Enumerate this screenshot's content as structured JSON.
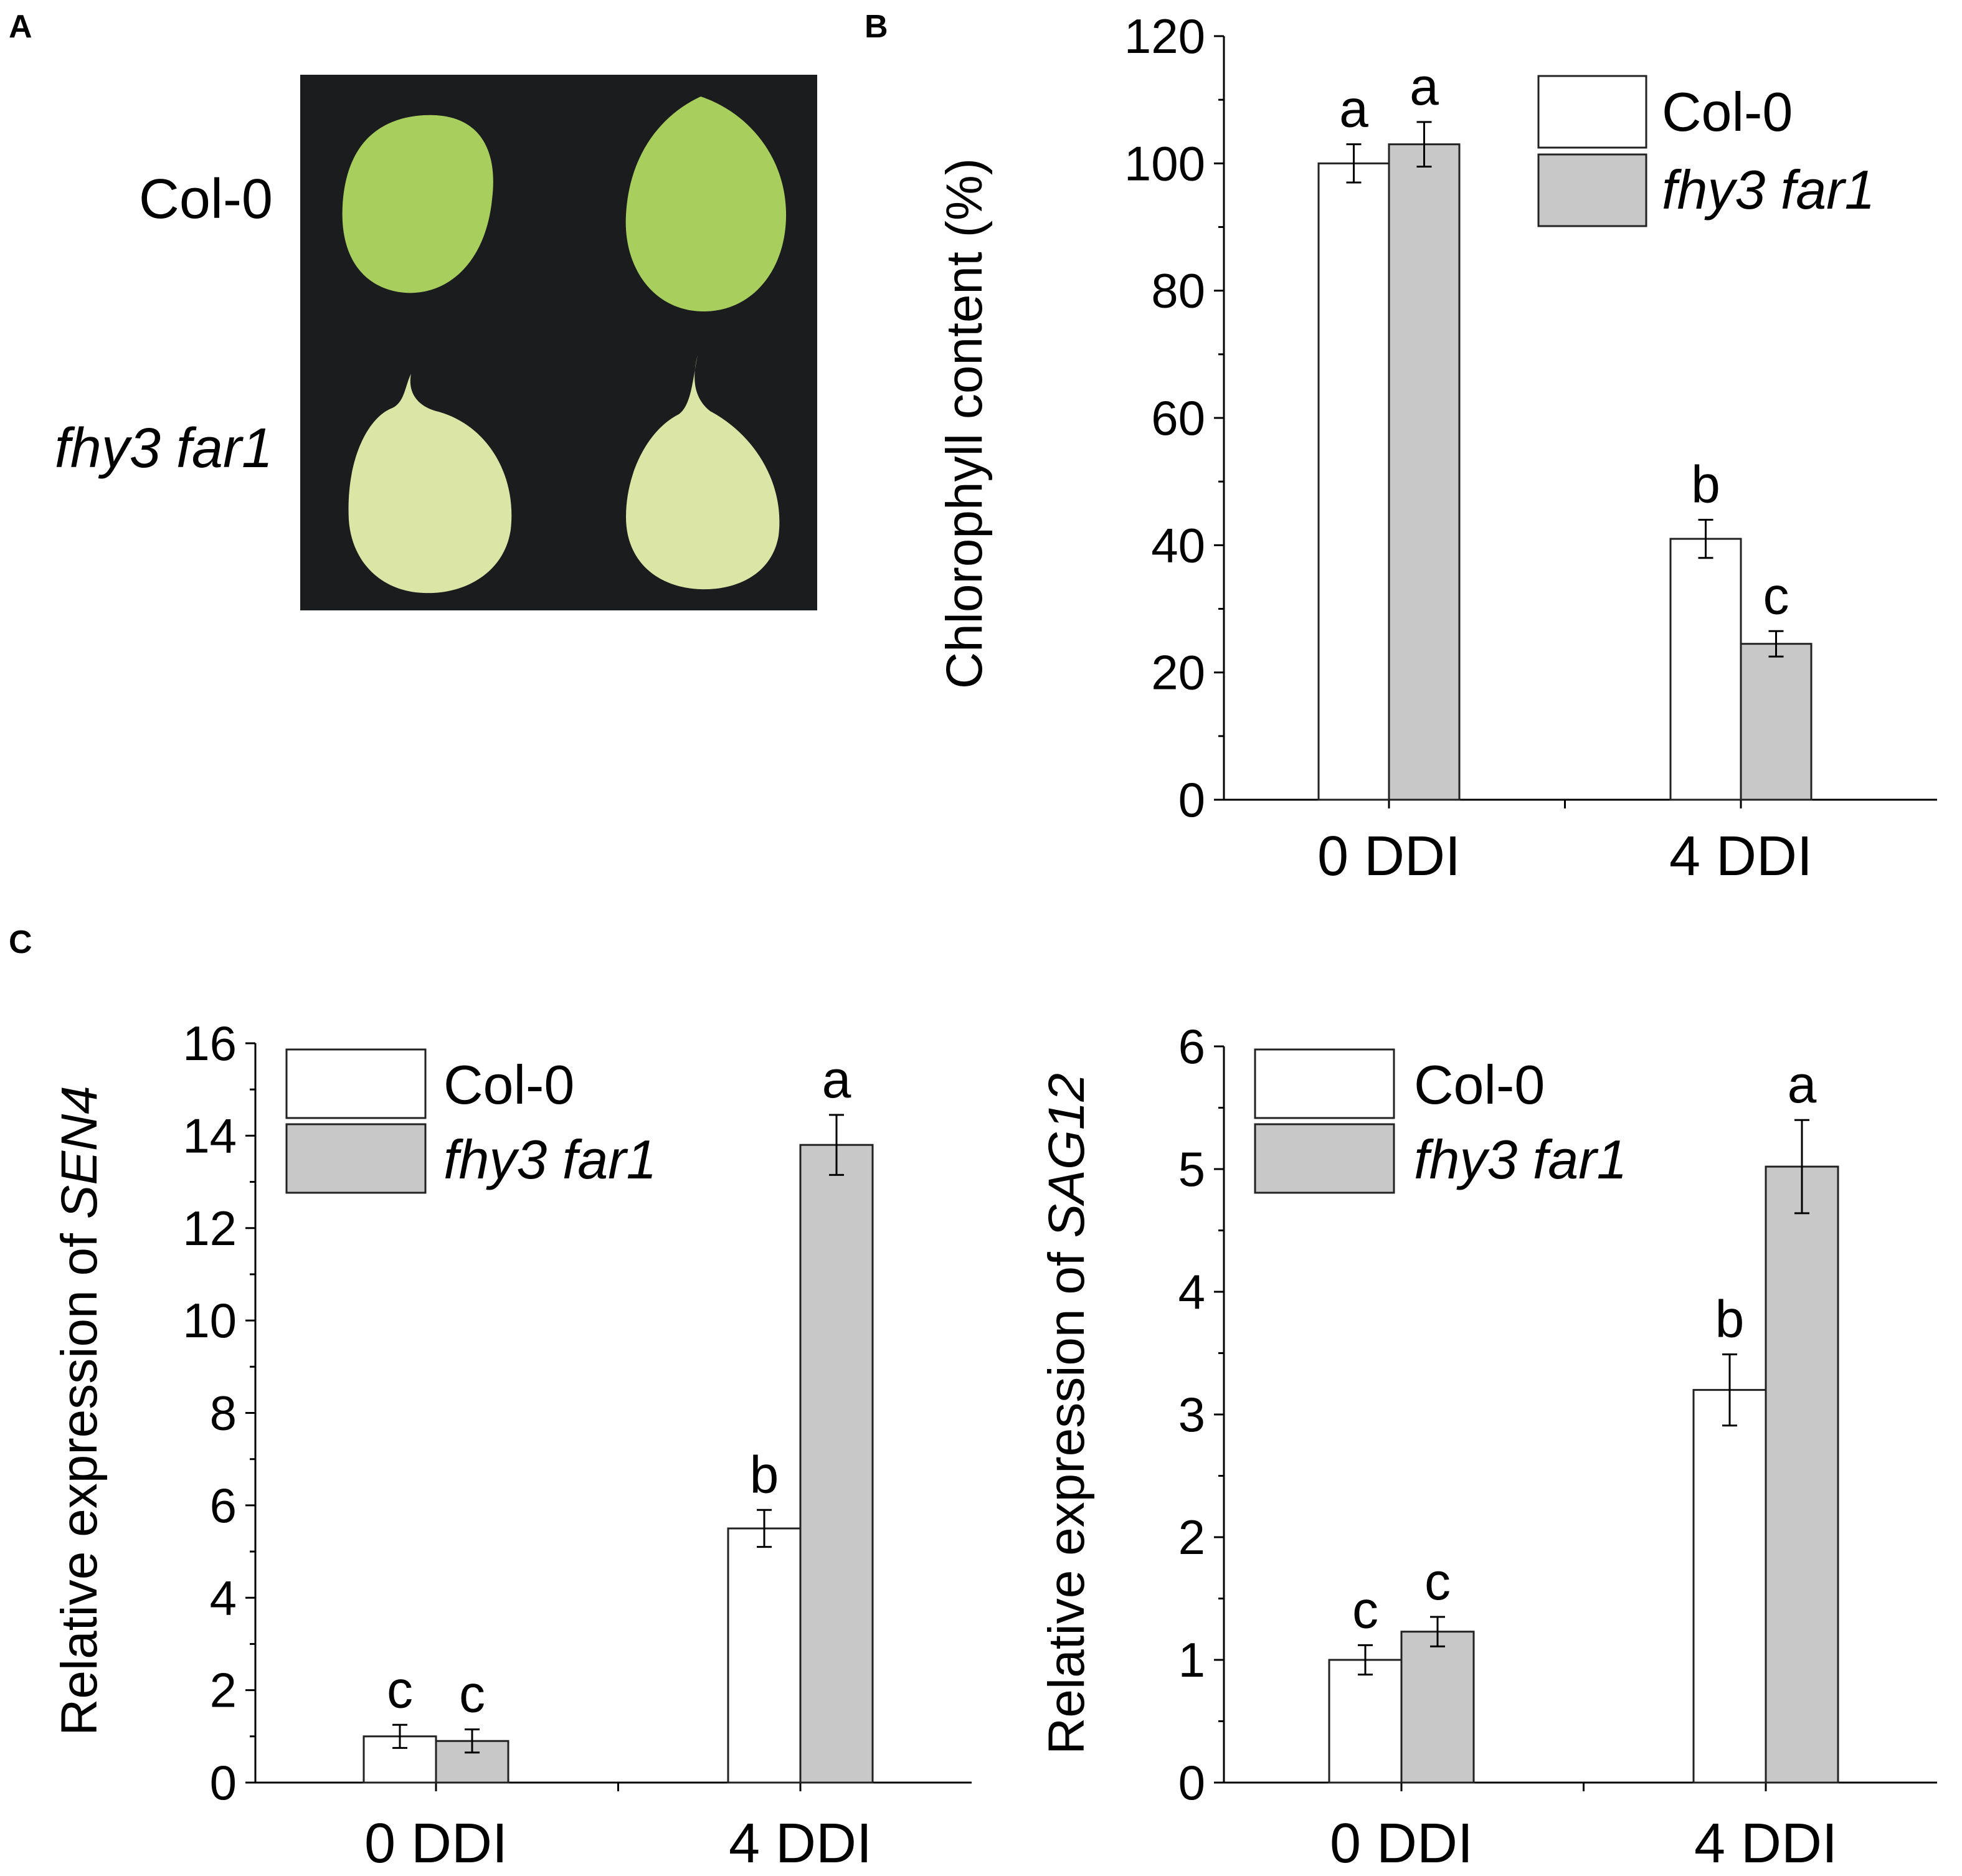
{
  "panel_labels": [
    "A",
    "B",
    "C"
  ],
  "photo": {
    "rows": [
      "Col-0",
      "fhy3 far1"
    ],
    "colors": {
      "background": "#1b1c1e",
      "col0_leaf": "#a8cf5e",
      "mutant_leaf": "#dbe6a6"
    }
  },
  "colors": {
    "col0_bar": "#ffffff",
    "mutant_bar": "#c8c8c8",
    "stroke": "#222222"
  },
  "chart_data": [
    {
      "id": "B",
      "type": "bar",
      "categories": [
        "0 DDI",
        "4 DDI"
      ],
      "series": [
        {
          "name": "Col-0",
          "values": [
            100,
            41
          ],
          "errors": [
            3,
            3
          ],
          "letters": [
            "a",
            "b"
          ]
        },
        {
          "name": "fhy3 far1",
          "values": [
            103,
            24.5
          ],
          "errors": [
            3.5,
            2
          ],
          "letters": [
            "a",
            "c"
          ]
        }
      ],
      "ylabel": "Chlorophyll content (%)",
      "ylim": [
        0,
        120
      ],
      "yticks": [
        0,
        20,
        40,
        60,
        80,
        100,
        120
      ],
      "legend_placement": "top-right",
      "grid": false
    },
    {
      "id": "C1",
      "type": "bar",
      "categories": [
        "0 DDI",
        "4 DDI"
      ],
      "series": [
        {
          "name": "Col-0",
          "values": [
            1.0,
            5.5
          ],
          "errors": [
            0.25,
            0.4
          ],
          "letters": [
            "c",
            "b"
          ]
        },
        {
          "name": "fhy3 far1",
          "values": [
            0.9,
            13.8
          ],
          "errors": [
            0.25,
            0.65
          ],
          "letters": [
            "c",
            "a"
          ]
        }
      ],
      "ylabel_prefix": "Relative expression of ",
      "ylabel_gene": "SEN4",
      "ylim": [
        0,
        16
      ],
      "yticks": [
        0,
        2,
        4,
        6,
        8,
        10,
        12,
        14,
        16
      ],
      "legend_placement": "top-left",
      "grid": false
    },
    {
      "id": "C2",
      "type": "bar",
      "categories": [
        "0 DDI",
        "4 DDI"
      ],
      "series": [
        {
          "name": "Col-0",
          "values": [
            1.0,
            3.2
          ],
          "errors": [
            0.12,
            0.29
          ],
          "letters": [
            "c",
            "b"
          ]
        },
        {
          "name": "fhy3 far1",
          "values": [
            1.23,
            5.02
          ],
          "errors": [
            0.12,
            0.38
          ],
          "letters": [
            "c",
            "a"
          ]
        }
      ],
      "ylabel_prefix": "Relative expression of ",
      "ylabel_gene": "SAG12",
      "ylim": [
        0,
        6
      ],
      "yticks": [
        0,
        1,
        2,
        3,
        4,
        5,
        6
      ],
      "legend_placement": "top-left",
      "grid": false
    }
  ]
}
